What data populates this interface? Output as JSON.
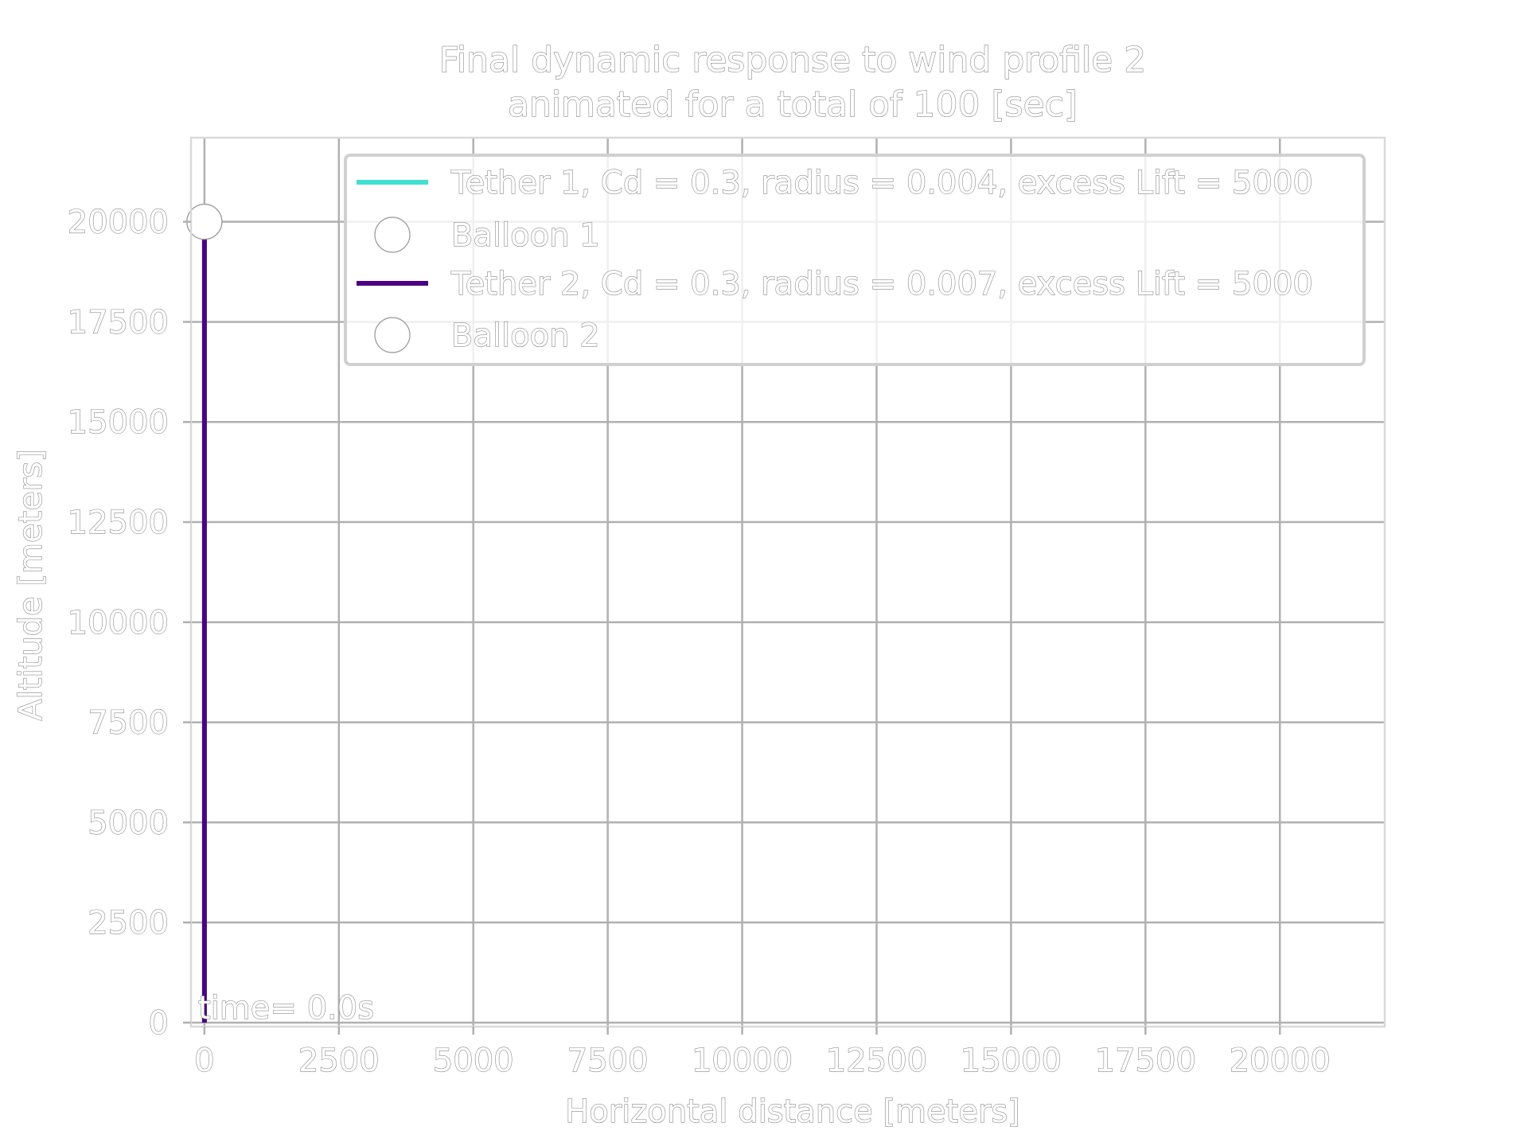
{
  "chart_data": {
    "type": "line",
    "title": "Final dynamic response to wind profile 2",
    "subtitle": "animated for a total of 100 [sec]",
    "xlabel": "Horizontal distance [meters]",
    "ylabel": "Altitude [meters]",
    "xlim": [
      -250,
      21950
    ],
    "ylim": [
      -100,
      22100
    ],
    "xticks": [
      0,
      2500,
      5000,
      7500,
      10000,
      12500,
      15000,
      17500,
      20000
    ],
    "yticks": [
      0,
      2500,
      5000,
      7500,
      10000,
      12500,
      15000,
      17500,
      20000
    ],
    "xtick_labels": [
      "0",
      "2500",
      "5000",
      "7500",
      "10000",
      "12500",
      "15000",
      "17500",
      "20000"
    ],
    "ytick_labels": [
      "0",
      "2500",
      "5000",
      "7500",
      "10000",
      "12500",
      "15000",
      "17500",
      "20000"
    ],
    "grid": true,
    "legend_position": "top-right",
    "annotation": "time= 0.0s",
    "series": [
      {
        "name": "Tether 1, Cd = 0.3, radius = 0.004, excess Lift = 5000",
        "kind": "line",
        "color": "#40e0d0",
        "x": [
          0,
          0
        ],
        "y": [
          0,
          20000
        ]
      },
      {
        "name": "Balloon 1",
        "kind": "marker",
        "color": "#ffffff",
        "x": [
          0
        ],
        "y": [
          20000
        ]
      },
      {
        "name": "Tether 2, Cd = 0.3, radius = 0.007, excess Lift = 5000",
        "kind": "line",
        "color": "#4b0082",
        "x": [
          0,
          0
        ],
        "y": [
          0,
          20000
        ]
      },
      {
        "name": "Balloon 2",
        "kind": "marker",
        "color": "#ffffff",
        "x": [
          0
        ],
        "y": [
          20000
        ]
      }
    ]
  }
}
